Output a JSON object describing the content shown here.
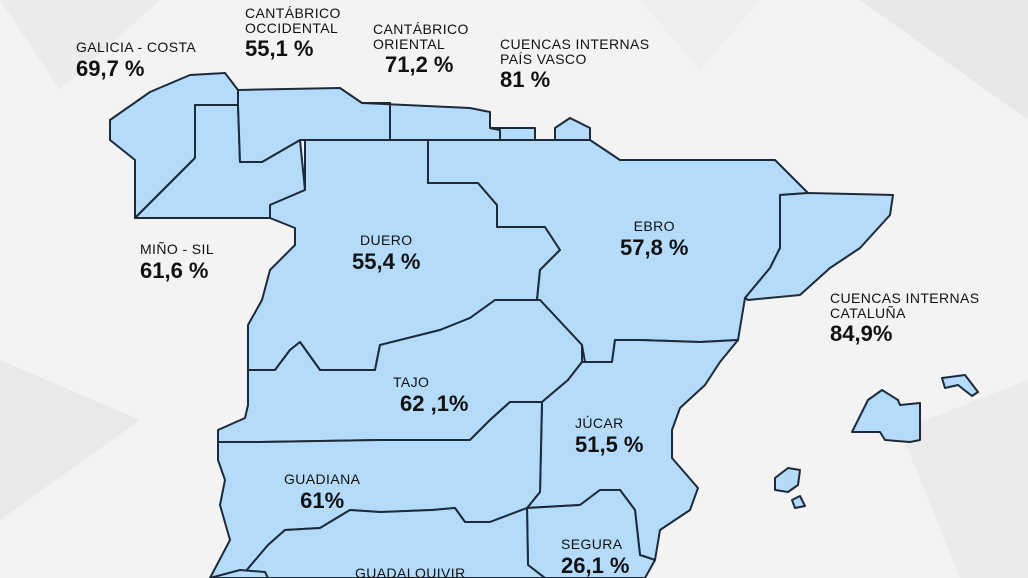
{
  "colors": {
    "basin_fill": "#b4dcfa",
    "border": "#1c2a3a",
    "background": "#f3f3f3"
  },
  "basins": {
    "galicia_costa": {
      "name": "GALICIA - COSTA",
      "value": "69,7 %"
    },
    "cantabrico_occidental": {
      "name_line1": "CANTÁBRICO",
      "name_line2": "OCCIDENTAL",
      "value": "55,1 %"
    },
    "cantabrico_oriental": {
      "name_line1": "CANTÁBRICO",
      "name_line2": "ORIENTAL",
      "value": "71,2 %"
    },
    "cuencas_internas_pais_vasco": {
      "name_line1": "CUENCAS INTERNAS",
      "name_line2": "PAÍS VASCO",
      "value": "81 %"
    },
    "mino_sil": {
      "name": "MIÑO - SIL",
      "value": "61,6 %"
    },
    "duero": {
      "name": "DUERO",
      "value": "55,4 %"
    },
    "ebro": {
      "name": "EBRO",
      "value": "57,8 %"
    },
    "cuencas_internas_cataluna": {
      "name_line1": "CUENCAS INTERNAS",
      "name_line2": "CATALUÑA",
      "value": "84,9%"
    },
    "tajo": {
      "name": "TAJO",
      "value": "62 ,1%"
    },
    "jucar": {
      "name": "JÚCAR",
      "value": "51,5 %"
    },
    "guadiana": {
      "name": "GUADIANA",
      "value": "61%"
    },
    "segura": {
      "name": "SEGURA",
      "value": "26,1 %"
    },
    "guadalquivir": {
      "name": "GUADALQUIVIR"
    }
  }
}
